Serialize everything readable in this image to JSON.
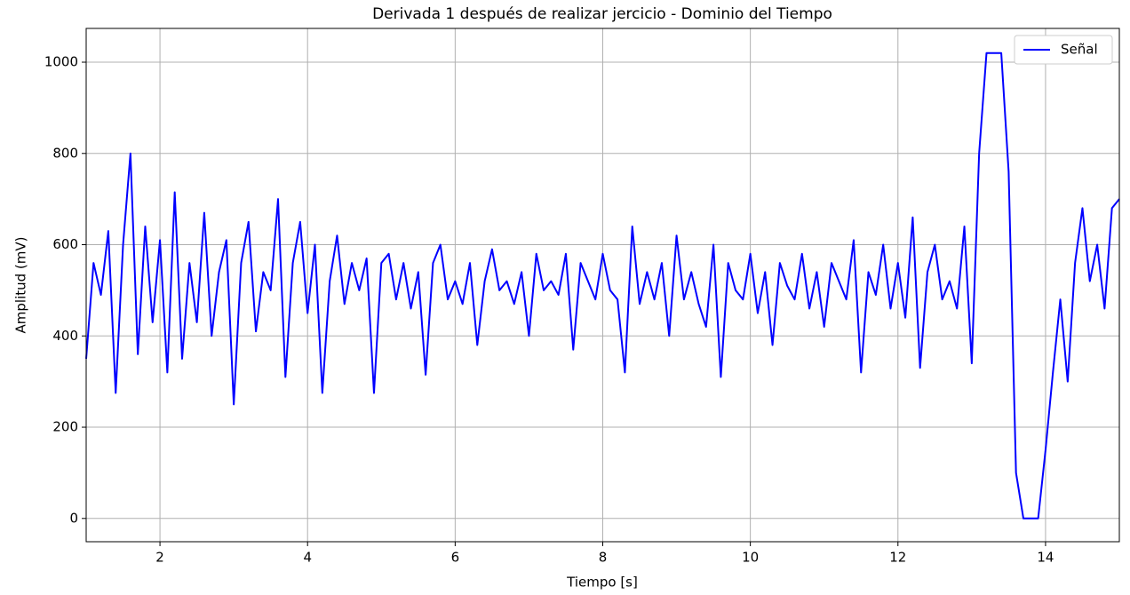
{
  "chart_data": {
    "type": "line",
    "title": "Derivada 1 después de realizar jercicio - Dominio del Tiempo",
    "xlabel": "Tiempo [s]",
    "ylabel": "Amplitud (mV)",
    "xlim": [
      1,
      15
    ],
    "ylim": [
      -51,
      1074
    ],
    "xticks": [
      2,
      4,
      6,
      8,
      10,
      12,
      14
    ],
    "yticks": [
      0,
      200,
      400,
      600,
      800,
      1000
    ],
    "grid": true,
    "legend": "upper right",
    "x": [
      1.0,
      1.1,
      1.2,
      1.3,
      1.4,
      1.5,
      1.6,
      1.7,
      1.8,
      1.9,
      2.0,
      2.1,
      2.2,
      2.3,
      2.4,
      2.5,
      2.6,
      2.7,
      2.8,
      2.9,
      3.0,
      3.1,
      3.2,
      3.3,
      3.4,
      3.5,
      3.6,
      3.7,
      3.8,
      3.9,
      4.0,
      4.1,
      4.2,
      4.3,
      4.4,
      4.5,
      4.6,
      4.7,
      4.8,
      4.9,
      5.0,
      5.1,
      5.2,
      5.3,
      5.4,
      5.5,
      5.6,
      5.7,
      5.8,
      5.9,
      6.0,
      6.1,
      6.2,
      6.3,
      6.4,
      6.5,
      6.6,
      6.7,
      6.8,
      6.9,
      7.0,
      7.1,
      7.2,
      7.3,
      7.4,
      7.5,
      7.6,
      7.7,
      7.8,
      7.9,
      8.0,
      8.1,
      8.2,
      8.3,
      8.4,
      8.5,
      8.6,
      8.7,
      8.8,
      8.9,
      9.0,
      9.1,
      9.2,
      9.3,
      9.4,
      9.5,
      9.6,
      9.7,
      9.8,
      9.9,
      10.0,
      10.1,
      10.2,
      10.3,
      10.4,
      10.5,
      10.6,
      10.7,
      10.8,
      10.9,
      11.0,
      11.1,
      11.2,
      11.3,
      11.4,
      11.5,
      11.6,
      11.7,
      11.8,
      11.9,
      12.0,
      12.1,
      12.2,
      12.3,
      12.4,
      12.5,
      12.6,
      12.7,
      12.8,
      12.9,
      13.0,
      13.1,
      13.2,
      13.3,
      13.4,
      13.5,
      13.6,
      13.7,
      13.8,
      13.9,
      14.0,
      14.1,
      14.2,
      14.3,
      14.4,
      14.5,
      14.6,
      14.7,
      14.8,
      14.9,
      15.0
    ],
    "series": [
      {
        "name": "Señal",
        "color": "#0000ff",
        "values": [
          350,
          560,
          490,
          630,
          275,
          600,
          800,
          360,
          640,
          430,
          610,
          320,
          715,
          350,
          560,
          430,
          670,
          400,
          540,
          610,
          250,
          560,
          650,
          410,
          540,
          500,
          700,
          310,
          560,
          650,
          450,
          600,
          275,
          520,
          620,
          470,
          560,
          500,
          570,
          275,
          560,
          580,
          480,
          560,
          460,
          540,
          315,
          560,
          600,
          480,
          520,
          470,
          560,
          380,
          520,
          590,
          500,
          520,
          470,
          540,
          400,
          580,
          500,
          520,
          490,
          580,
          370,
          560,
          520,
          480,
          580,
          500,
          480,
          320,
          640,
          470,
          540,
          480,
          560,
          400,
          620,
          480,
          540,
          470,
          420,
          600,
          310,
          560,
          500,
          480,
          580,
          450,
          540,
          380,
          560,
          510,
          480,
          580,
          460,
          540,
          420,
          560,
          520,
          480,
          610,
          320,
          540,
          490,
          600,
          460,
          560,
          440,
          660,
          330,
          540,
          600,
          480,
          520,
          460,
          640,
          340,
          800,
          1020,
          1020,
          1020,
          760,
          100,
          0,
          0,
          0,
          150,
          320,
          480,
          300,
          560,
          680,
          520,
          600,
          460,
          680,
          700
        ]
      }
    ]
  }
}
